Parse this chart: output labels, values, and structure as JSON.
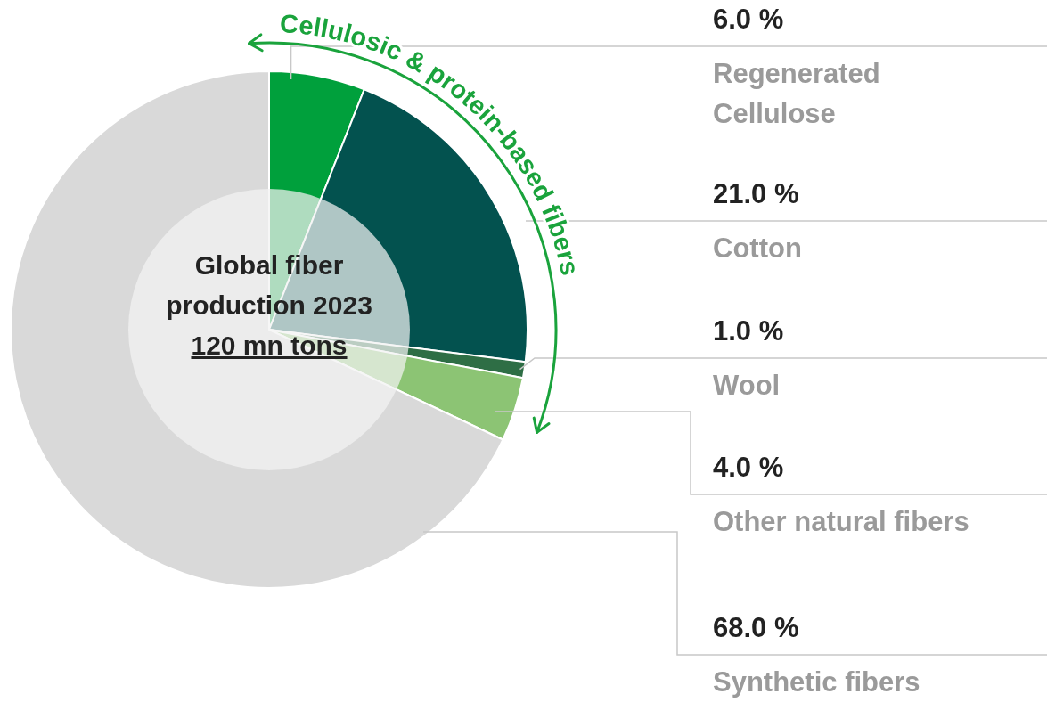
{
  "chart_data": {
    "type": "pie",
    "title": "Global fiber production 2023",
    "subtitle": "120 mn tons",
    "categories": [
      "Regenerated Cellulose",
      "Cotton",
      "Wool",
      "Other natural fibers",
      "Synthetic fibers"
    ],
    "values": [
      6,
      21,
      1,
      4,
      68
    ],
    "colors": [
      "#00a03c",
      "#03524f",
      "#2e6e45",
      "#8cc474",
      "#d9d9d9"
    ],
    "value_labels": [
      "6.0 %",
      "21.0 %",
      "1.0 %",
      "4.0 %",
      "68.0 %"
    ],
    "annotations": [
      "Cellulosic & protein-based fibers"
    ]
  }
}
